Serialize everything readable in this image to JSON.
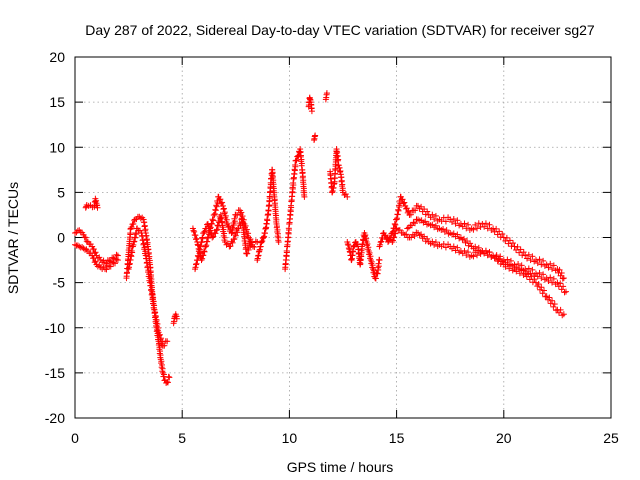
{
  "chart_data": {
    "type": "scatter",
    "title": "Day 287 of 2022, Sidereal Day-to-day VTEC variation (SDTVAR) for receiver sg27",
    "xlabel": "GPS time / hours",
    "ylabel": "SDTVAR / TECUs",
    "xlim": [
      0,
      25
    ],
    "ylim": [
      -20,
      20
    ],
    "xticks": [
      0,
      5,
      10,
      15,
      20,
      25
    ],
    "yticks": [
      -20,
      -15,
      -10,
      -5,
      0,
      5,
      10,
      15,
      20
    ],
    "grid": true,
    "marker": "+",
    "color": "#ff0000",
    "segments": [
      {
        "x": [
          0.0,
          0.2,
          0.4,
          0.6,
          0.8,
          1.0,
          1.2,
          1.4,
          1.6,
          1.8,
          2.0
        ],
        "y": [
          0.5,
          0.8,
          0.3,
          -0.5,
          -1.0,
          -2.0,
          -2.5,
          -2.8,
          -2.6,
          -2.3,
          -2.0
        ]
      },
      {
        "x": [
          0.0,
          0.2,
          0.4,
          0.6,
          0.8,
          1.0,
          1.2,
          1.4,
          1.6,
          1.8,
          2.0
        ],
        "y": [
          -0.8,
          -1.0,
          -1.2,
          -1.5,
          -2.0,
          -3.0,
          -3.3,
          -3.5,
          -3.2,
          -2.8,
          -2.5
        ]
      },
      {
        "x": [
          0.5,
          0.55,
          0.9,
          0.95,
          1.0,
          1.05
        ],
        "y": [
          3.3,
          3.6,
          3.4,
          4.3,
          3.8,
          3.3
        ]
      },
      {
        "x": [
          2.4,
          2.6,
          2.8,
          3.0,
          3.2,
          3.3,
          3.4,
          3.5,
          3.6,
          3.7,
          3.8,
          3.9,
          4.0,
          4.1,
          4.2,
          4.3,
          4.4
        ],
        "y": [
          -4.5,
          1.0,
          2.0,
          2.3,
          2.0,
          0.5,
          -1.0,
          -3.0,
          -6.0,
          -8.0,
          -10.0,
          -11.5,
          -13.5,
          -15.0,
          -15.8,
          -16.0,
          -15.5
        ]
      },
      {
        "x": [
          2.5,
          2.7,
          2.9,
          3.1,
          3.3,
          3.5,
          3.7,
          3.9,
          4.1,
          4.3
        ],
        "y": [
          -3.5,
          -1.0,
          1.0,
          0.5,
          -2.0,
          -5.0,
          -8.0,
          -10.5,
          -12.0,
          -11.5
        ]
      },
      {
        "x": [
          4.6,
          4.65,
          4.7,
          4.75
        ],
        "y": [
          -9.5,
          -8.8,
          -8.5,
          -9.0
        ]
      },
      {
        "x": [
          5.5,
          5.7,
          5.9,
          6.1,
          6.3,
          6.5,
          6.7,
          6.9,
          7.1,
          7.3,
          7.5,
          7.7,
          7.9,
          8.1,
          8.3,
          8.5
        ],
        "y": [
          1.0,
          -0.5,
          -2.5,
          -1.0,
          1.0,
          2.5,
          4.5,
          3.5,
          1.5,
          0.5,
          2.5,
          3.0,
          1.5,
          0.0,
          -1.0,
          -0.5
        ]
      },
      {
        "x": [
          5.6,
          5.8,
          6.0,
          6.2,
          6.4,
          6.6,
          6.8,
          7.0,
          7.2,
          7.4,
          7.6,
          7.8,
          8.0,
          8.2
        ],
        "y": [
          -3.5,
          -1.5,
          0.5,
          1.5,
          0.0,
          0.8,
          2.5,
          -0.5,
          -1.0,
          -0.2,
          1.0,
          2.0,
          -1.8,
          -0.5
        ]
      },
      {
        "x": [
          8.5,
          8.6,
          8.7,
          8.8,
          8.9,
          9.0,
          9.05,
          9.1,
          9.15,
          9.2,
          9.3,
          9.4,
          9.5
        ],
        "y": [
          -2.5,
          -1.5,
          -0.5,
          0.0,
          1.0,
          2.5,
          3.5,
          5.0,
          6.5,
          7.5,
          4.5,
          1.5,
          -0.5
        ]
      },
      {
        "x": [
          9.8,
          9.9,
          10.0,
          10.1,
          10.2,
          10.3,
          10.4,
          10.5,
          10.6,
          10.7
        ],
        "y": [
          -3.5,
          -1.0,
          1.5,
          4.0,
          6.5,
          8.5,
          9.0,
          9.8,
          7.5,
          4.5
        ]
      },
      {
        "x": [
          10.9,
          10.95,
          11.0,
          11.05
        ],
        "y": [
          14.5,
          15.5,
          15.0,
          14.0
        ]
      },
      {
        "x": [
          11.15,
          11.2
        ],
        "y": [
          10.8,
          11.3
        ]
      },
      {
        "x": [
          11.7,
          11.75
        ],
        "y": [
          15.3,
          16.0
        ]
      },
      {
        "x": [
          11.9,
          12.0,
          12.1,
          12.2,
          12.3,
          12.4,
          12.5,
          12.7
        ],
        "y": [
          7.3,
          5.0,
          6.0,
          9.8,
          8.0,
          7.0,
          5.0,
          4.5
        ]
      },
      {
        "x": [
          12.7,
          12.8,
          12.9,
          13.0,
          13.1,
          13.2,
          13.3,
          13.4,
          13.5,
          13.6,
          13.7,
          13.8,
          13.9,
          14.0,
          14.1,
          14.2
        ],
        "y": [
          -0.5,
          -1.3,
          -2.5,
          -1.0,
          -0.5,
          -1.0,
          -3.0,
          -0.8,
          0.5,
          -0.5,
          -1.5,
          -2.5,
          -3.5,
          -4.5,
          -4.0,
          -2.5
        ]
      },
      {
        "x": [
          14.2,
          14.4,
          14.6,
          14.8,
          15.0,
          15.2,
          15.4,
          15.6,
          15.8,
          16.0,
          16.5,
          17.0,
          17.5,
          18.0,
          18.5,
          19.0,
          19.5,
          20.0,
          20.5,
          21.0,
          21.5,
          22.0,
          22.5,
          22.8
        ],
        "y": [
          -1.0,
          0.5,
          -0.5,
          0.5,
          2.0,
          4.5,
          3.5,
          2.5,
          3.0,
          3.5,
          2.5,
          2.0,
          2.0,
          1.5,
          1.0,
          1.5,
          1.0,
          0.0,
          -1.0,
          -2.0,
          -2.5,
          -3.0,
          -3.5,
          -4.5
        ]
      },
      {
        "x": [
          14.6,
          14.8,
          15.0,
          15.3,
          15.6,
          16.0,
          16.5,
          17.0,
          17.5,
          18.0,
          18.5,
          19.0,
          19.5,
          20.0,
          20.5,
          21.0,
          21.5,
          22.0,
          22.5,
          22.9
        ],
        "y": [
          0.0,
          -0.5,
          1.0,
          0.5,
          0.0,
          0.5,
          -0.5,
          -0.8,
          -1.0,
          -1.5,
          -2.0,
          -1.5,
          -2.0,
          -2.5,
          -3.0,
          -3.5,
          -4.0,
          -4.5,
          -5.0,
          -6.0
        ]
      },
      {
        "x": [
          15.5,
          16.0,
          16.5,
          17.0,
          17.5,
          18.0,
          18.5,
          19.0,
          19.5,
          20.0,
          20.5,
          21.0,
          21.5,
          22.0,
          22.5,
          22.8
        ],
        "y": [
          1.0,
          2.0,
          1.5,
          1.0,
          0.5,
          0.0,
          -1.0,
          -1.5,
          -2.0,
          -3.0,
          -3.5,
          -4.0,
          -5.0,
          -6.5,
          -8.0,
          -8.5
        ]
      }
    ]
  }
}
